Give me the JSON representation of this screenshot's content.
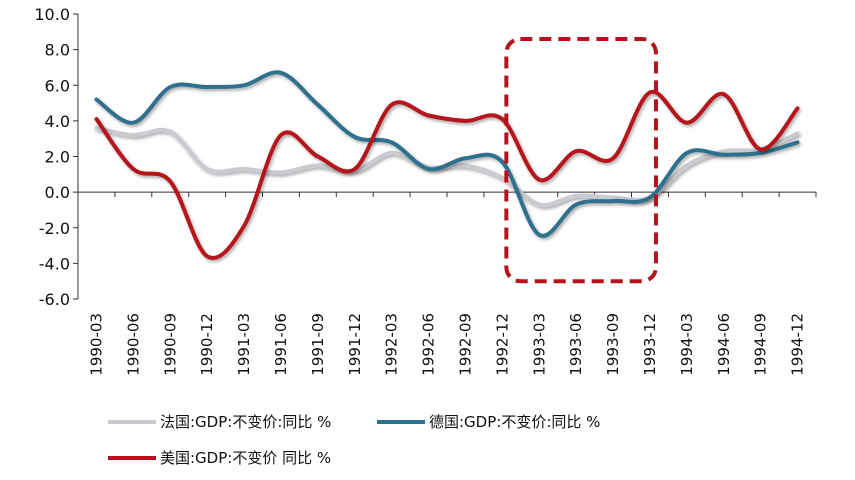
{
  "chart_data": {
    "type": "line",
    "categories": [
      "1990-03",
      "1990-06",
      "1990-09",
      "1990-12",
      "1991-03",
      "1991-06",
      "1991-09",
      "1991-12",
      "1992-03",
      "1992-06",
      "1992-09",
      "1992-12",
      "1993-03",
      "1993-06",
      "1993-09",
      "1993-12",
      "1994-03",
      "1994-06",
      "1994-09",
      "1994-12"
    ],
    "y_tick_labels": [
      "10.0",
      "8.0",
      "6.0",
      "4.0",
      "2.0",
      "0.0",
      "-2.0",
      "-4.0",
      "-6.0"
    ],
    "ylim": [
      -6,
      10
    ],
    "y_step": 2,
    "grid": false,
    "legend_position": "bottom",
    "series": [
      {
        "name": "法国:GDP:不变价:同比 %",
        "color": "#c8ccd0",
        "values": [
          3.6,
          3.2,
          3.4,
          1.3,
          1.3,
          1.1,
          1.5,
          1.2,
          2.2,
          1.4,
          1.5,
          0.8,
          -0.7,
          -0.2,
          -0.3,
          -0.3,
          1.5,
          2.3,
          2.4,
          3.3
        ]
      },
      {
        "name": "德国:GDP:不变价:同比 %",
        "color": "#2e6f8e",
        "values": [
          5.2,
          3.9,
          5.9,
          5.9,
          6.0,
          6.7,
          4.9,
          3.1,
          2.8,
          1.3,
          1.9,
          1.7,
          -2.4,
          -0.7,
          -0.5,
          -0.3,
          2.2,
          2.1,
          2.2,
          2.8
        ]
      },
      {
        "name": "美国:GDP:不变价 同比 %",
        "color": "#b5121b",
        "values": [
          4.1,
          1.3,
          0.6,
          -3.6,
          -1.9,
          3.2,
          2.0,
          1.3,
          4.9,
          4.3,
          4.0,
          4.1,
          0.7,
          2.3,
          1.9,
          5.6,
          3.9,
          5.5,
          2.4,
          4.7
        ]
      }
    ],
    "highlight": {
      "x_range": [
        "1992-12",
        "1993-12"
      ],
      "y_range": [
        -5,
        8.6
      ],
      "color": "#b5121b",
      "style": "dashed"
    }
  }
}
